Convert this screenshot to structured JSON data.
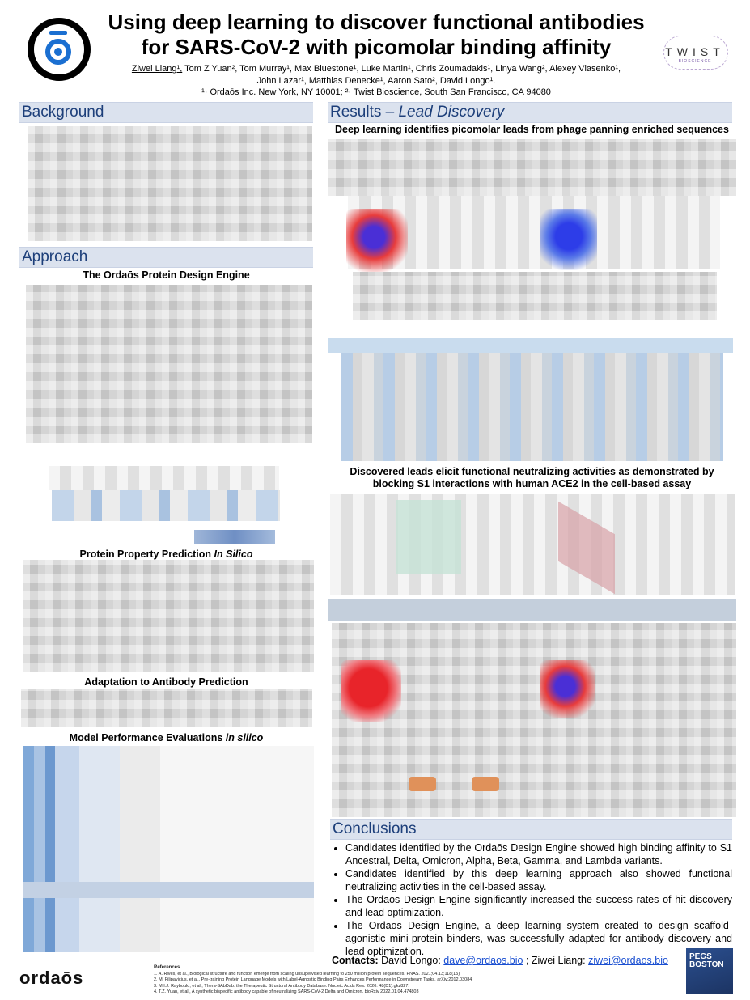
{
  "header": {
    "title_line1": "Using deep learning to discover functional antibodies",
    "title_line2": "for SARS-CoV-2 with picomolar binding affinity",
    "first_author": "Ziwei Liang¹,",
    "authors_rest": " Tom Z Yuan², Tom Murray¹, Max Bluestone¹, Luke Martin¹,  Chris Zoumadakis¹, Linya Wang², Alexey Vlasenko¹,",
    "authors_line2": "John Lazar¹, Matthias Denecke¹, Aaron Sato², David Longo¹.",
    "affiliations": "¹· Ordaōs Inc. New York, NY 10001; ²· Twist Bioscience, South San Francisco, CA 94080",
    "twist_logo": "TWIST",
    "twist_sub": "BIOSCIENCE"
  },
  "left": {
    "background_header": "Background",
    "approach_header": "Approach",
    "sub_engine": "The Ordaōs Protein Design Engine",
    "sub_property": "Protein Property Prediction",
    "sub_property_em": "In Silico",
    "sub_adaptation": "Adaptation to Antibody Prediction",
    "sub_model": "Model Performance Evaluations",
    "sub_model_em": "in silico"
  },
  "right": {
    "results_header": "Results –",
    "results_header_em": "Lead Discovery",
    "sub_leads": "Deep learning identifies picomolar leads from phage panning enriched sequences",
    "sub_neutral_line1": "Discovered leads elicit functional neutralizing activities as demonstrated by",
    "sub_neutral_line2": "blocking S1 interactions with human ACE2 in the cell-based assay",
    "conclusions_header": "Conclusions",
    "conclusions": [
      "Candidates identified by the Ordaōs Design Engine showed high binding affinity to S1 Ancestral, Delta, Omicron, Alpha, Beta, Gamma, and Lambda variants.",
      "Candidates identified by this deep learning approach also showed functional neutralizing activities in the cell-based assay.",
      "The Ordaōs Design Engine significantly increased the success rates of hit discovery and lead optimization.",
      "The Ordaōs Design Engine, a deep learning system created to design scaffold-agonistic mini-protein binders, was successfully adapted for antibody discovery and lead optimization."
    ],
    "contacts_label": "Contacts:",
    "contact1_name": "David Longo:",
    "contact1_email": "dave@ordaos.bio",
    "contact_sep": " ; Ziwei Liang:",
    "contact2_email": "ziwei@ordaos.bio"
  },
  "footer": {
    "brand": "ordaōs",
    "refs_title": "References",
    "refs": [
      "1.     A. Rives, et al., Biological structure and function emerge from scaling unsupervised learning to 250 million protein sequences. PNAS. 2021;04.13;118(15)",
      "2.     M. Filipavicius, et al., Pre-training Protein Language Models with Label-Agnostic Binding Pairs Enhances Performance in Downstream Tasks. arXiv:2012.03084",
      "3.     M.I.J. Raybould, et al., Thera-SAbDab: the Therapeutic Structural Antibody Database. Nucleic Acids Res. 2020. 48(D1):gkz827.",
      "4.     T.Z. Yuan, et al., A synthetic bispecific antibody capable of neutralizing SARS-CoV-2 Delta and Omicron. bioRxiv 2022.01.04.474803"
    ],
    "pegs_line1": "PEGS",
    "pegs_line2": "BOSTON"
  }
}
